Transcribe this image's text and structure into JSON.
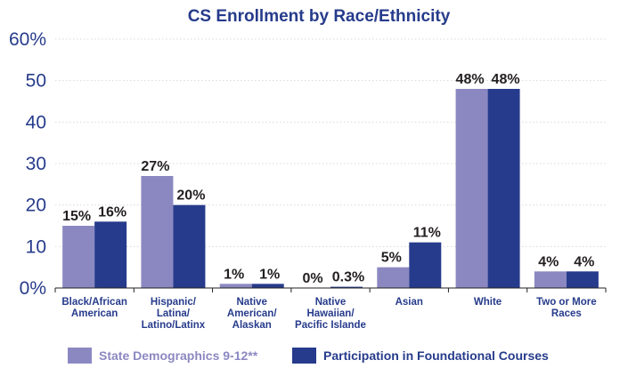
{
  "chart_data": {
    "type": "bar",
    "title": "CS Enrollment by Race/Ethnicity",
    "xlabel": "",
    "ylabel": "",
    "ylim": [
      0,
      60
    ],
    "yticks": [
      0,
      10,
      20,
      30,
      40,
      50,
      60
    ],
    "ytick_labels": [
      "0%",
      "10",
      "20",
      "30",
      "40",
      "50",
      "60%"
    ],
    "grid": true,
    "legend_position": "bottom",
    "categories": [
      [
        "Black/African",
        "American"
      ],
      [
        "Hispanic/",
        "Latina/",
        "Latino/Latinx"
      ],
      [
        "Native",
        "American/",
        "Alaskan"
      ],
      [
        "Native",
        "Hawaiian/",
        "Pacific Islande"
      ],
      [
        "Asian"
      ],
      [
        "White"
      ],
      [
        "Two or More",
        "Races"
      ]
    ],
    "series": [
      {
        "name": "State Demographics 9-12**",
        "color": "#8b88c1",
        "values": [
          15,
          27,
          1,
          0,
          5,
          48,
          4
        ],
        "labels": [
          "15%",
          "27%",
          "1%",
          "0%",
          "5%",
          "48%",
          "4%"
        ]
      },
      {
        "name": "Participation in Foundational Courses",
        "color": "#263b8b",
        "values": [
          16,
          20,
          1,
          0.3,
          11,
          48,
          4
        ],
        "labels": [
          "16%",
          "20%",
          "1%",
          "0.3%",
          "11%",
          "48%",
          "4%"
        ]
      }
    ],
    "colors": {
      "title": "#263b8b",
      "axis_text": "#263b8b",
      "grid": "#d9d9d9"
    }
  }
}
